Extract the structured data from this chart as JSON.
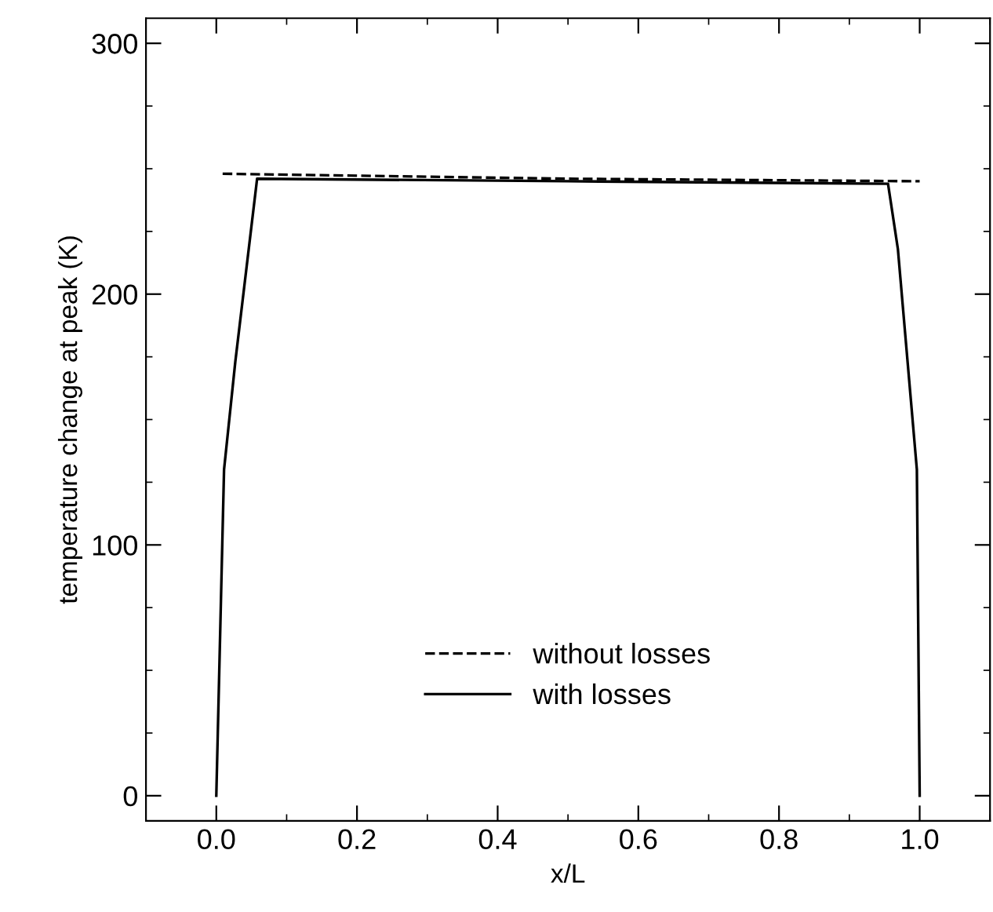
{
  "chart_data": {
    "type": "line",
    "xlabel": "x/L",
    "ylabel": "temperature change at peak (K)",
    "xlim": [
      -0.1,
      1.1
    ],
    "ylim": [
      -10,
      310
    ],
    "xticks": [
      {
        "value": 0.0,
        "label": "0.0"
      },
      0.2,
      0.4,
      0.6,
      0.8,
      {
        "value": 1.0,
        "label": "1.0"
      }
    ],
    "yticks": [
      0,
      100,
      200,
      300
    ],
    "grid": false,
    "legend": "bottom",
    "marker": "none",
    "series": [
      {
        "name": "without losses",
        "color": "#000000",
        "line_style": "dashed",
        "x": [
          0.009,
          0.5,
          1.0
        ],
        "values": [
          248,
          246,
          245
        ]
      },
      {
        "name": "with losses",
        "color": "#000000",
        "line_style": "solid",
        "x": [
          0.0,
          0.011,
          0.027,
          0.058,
          0.5,
          0.955,
          0.969,
          0.996,
          1.0
        ],
        "values": [
          0,
          130,
          173,
          246,
          245,
          244,
          218,
          130,
          0
        ]
      }
    ]
  }
}
